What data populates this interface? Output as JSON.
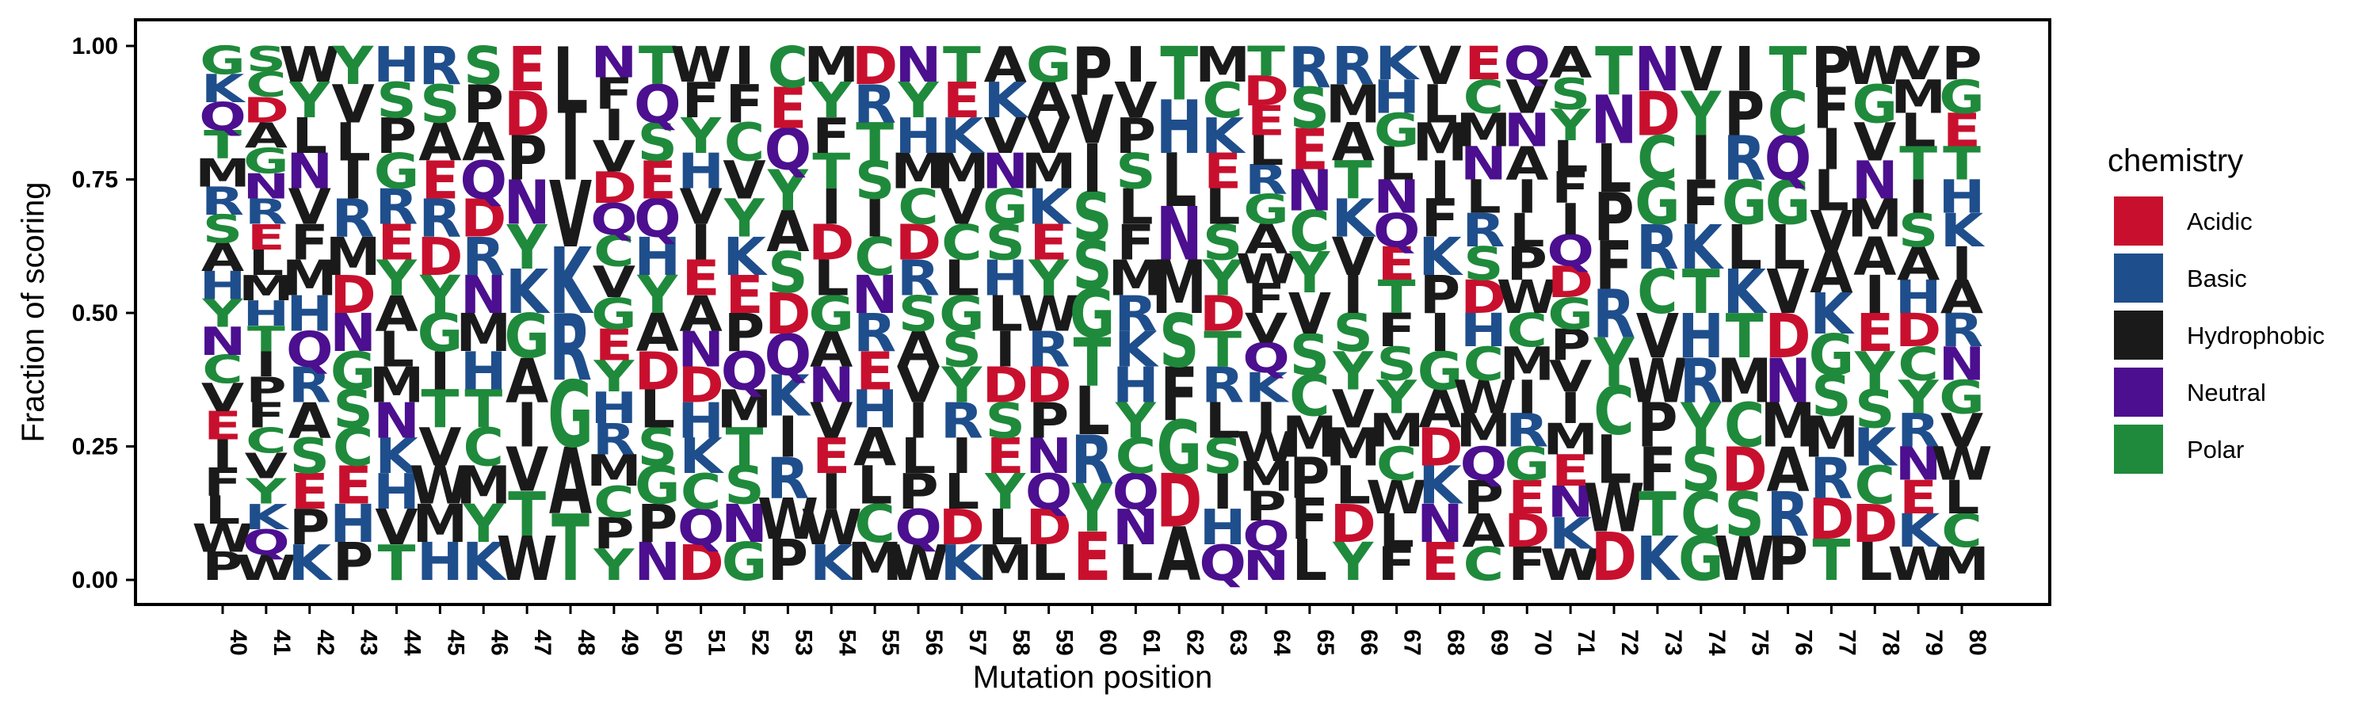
{
  "chart_data": {
    "type": "sequence-logo",
    "ylabel": "Fraction of scoring",
    "xlabel": "Mutation position",
    "ylim": [
      0,
      1.04
    ],
    "yticks": [
      0.0,
      0.25,
      0.5,
      0.75,
      1.0
    ],
    "ytick_labels": [
      "0.00",
      "0.25",
      "0.50",
      "0.75",
      "1.00"
    ],
    "legend": {
      "title": "chemistry",
      "placement": "right",
      "entries": [
        {
          "name": "Acidic",
          "color": "#c8102e"
        },
        {
          "name": "Basic",
          "color": "#1f4e8c"
        },
        {
          "name": "Hydrophobic",
          "color": "#1a1a1a"
        },
        {
          "name": "Neutral",
          "color": "#4b0f8f"
        },
        {
          "name": "Polar",
          "color": "#1f8a3b"
        }
      ]
    },
    "chemistry": {
      "D": "Acidic",
      "E": "Acidic",
      "R": "Basic",
      "H": "Basic",
      "K": "Basic",
      "A": "Hydrophobic",
      "V": "Hydrophobic",
      "I": "Hydrophobic",
      "L": "Hydrophobic",
      "M": "Hydrophobic",
      "F": "Hydrophobic",
      "W": "Hydrophobic",
      "P": "Hydrophobic",
      "N": "Neutral",
      "Q": "Neutral",
      "G": "Polar",
      "S": "Polar",
      "T": "Polar",
      "Y": "Polar",
      "C": "Polar"
    },
    "positions": [
      {
        "x": 40,
        "letters": [
          "P",
          "W",
          "L",
          "F",
          "I",
          "E",
          "V",
          "C",
          "N",
          "Y",
          "H",
          "A",
          "S",
          "R",
          "M",
          "T",
          "Q",
          "K",
          "G"
        ]
      },
      {
        "x": 41,
        "letters": [
          "W",
          "Q",
          "K",
          "Y",
          "V",
          "C",
          "F",
          "P",
          "I",
          "T",
          "H",
          "M",
          "L",
          "E",
          "R",
          "N",
          "G",
          "A",
          "D",
          "C",
          "S"
        ]
      },
      {
        "x": 42,
        "letters": [
          "K",
          "P",
          "E",
          "S",
          "A",
          "R",
          "Q",
          "H",
          "M",
          "F",
          "V",
          "N",
          "L",
          "Y",
          "W"
        ]
      },
      {
        "x": 43,
        "letters": [
          "P",
          "H",
          "E",
          "C",
          "S",
          "G",
          "N",
          "D",
          "M",
          "R",
          "I",
          "L",
          "V",
          "Y"
        ]
      },
      {
        "x": 44,
        "letters": [
          "T",
          "V",
          "H",
          "K",
          "N",
          "M",
          "L",
          "A",
          "Y",
          "E",
          "R",
          "G",
          "P",
          "S",
          "H"
        ]
      },
      {
        "x": 45,
        "letters": [
          "H",
          "M",
          "W",
          "V",
          "T",
          "I",
          "G",
          "Y",
          "D",
          "R",
          "E",
          "A",
          "S",
          "R"
        ]
      },
      {
        "x": 46,
        "letters": [
          "K",
          "Y",
          "M",
          "C",
          "T",
          "H",
          "M",
          "N",
          "R",
          "D",
          "Q",
          "A",
          "P",
          "S"
        ]
      },
      {
        "x": 47,
        "letters": [
          "W",
          "T",
          "V",
          "I",
          "A",
          "G",
          "K",
          "Y",
          "N",
          "P",
          "D",
          "E"
        ]
      },
      {
        "x": 48,
        "letters": [
          "T",
          "A",
          "G",
          "R",
          "K",
          "V",
          "I",
          "L"
        ]
      },
      {
        "x": 49,
        "letters": [
          "Y",
          "P",
          "C",
          "M",
          "R",
          "H",
          "Y",
          "E",
          "G",
          "V",
          "C",
          "Q",
          "D",
          "V",
          "I",
          "F",
          "N"
        ]
      },
      {
        "x": 50,
        "letters": [
          "N",
          "P",
          "G",
          "S",
          "L",
          "D",
          "A",
          "Y",
          "H",
          "Q",
          "E",
          "S",
          "Q",
          "T"
        ]
      },
      {
        "x": 51,
        "letters": [
          "D",
          "Q",
          "C",
          "K",
          "H",
          "D",
          "N",
          "A",
          "E",
          "I",
          "V",
          "H",
          "Y",
          "F",
          "W"
        ]
      },
      {
        "x": 52,
        "letters": [
          "G",
          "N",
          "S",
          "T",
          "M",
          "Q",
          "P",
          "E",
          "K",
          "Y",
          "V",
          "C",
          "F",
          "I"
        ]
      },
      {
        "x": 53,
        "letters": [
          "P",
          "W",
          "R",
          "I",
          "K",
          "Q",
          "D",
          "S",
          "A",
          "Y",
          "Q",
          "E",
          "C"
        ]
      },
      {
        "x": 54,
        "letters": [
          "K",
          "W",
          "I",
          "E",
          "V",
          "N",
          "A",
          "G",
          "L",
          "D",
          "I",
          "T",
          "F",
          "Y",
          "M"
        ]
      },
      {
        "x": 55,
        "letters": [
          "M",
          "C",
          "L",
          "A",
          "H",
          "E",
          "R",
          "N",
          "C",
          "I",
          "S",
          "T",
          "R",
          "D"
        ]
      },
      {
        "x": 56,
        "letters": [
          "W",
          "Q",
          "P",
          "L",
          "I",
          "V",
          "A",
          "S",
          "R",
          "D",
          "C",
          "M",
          "H",
          "Y",
          "N"
        ]
      },
      {
        "x": 57,
        "letters": [
          "K",
          "D",
          "L",
          "I",
          "R",
          "Y",
          "S",
          "G",
          "L",
          "C",
          "V",
          "M",
          "K",
          "E",
          "T"
        ]
      },
      {
        "x": 58,
        "letters": [
          "M",
          "L",
          "Y",
          "E",
          "S",
          "D",
          "I",
          "L",
          "H",
          "S",
          "G",
          "N",
          "V",
          "K",
          "A"
        ]
      },
      {
        "x": 59,
        "letters": [
          "L",
          "D",
          "Q",
          "N",
          "P",
          "D",
          "R",
          "W",
          "Y",
          "E",
          "K",
          "M",
          "V",
          "A",
          "G"
        ]
      },
      {
        "x": 60,
        "letters": [
          "E",
          "Y",
          "R",
          "L",
          "T",
          "G",
          "S",
          "S",
          "I",
          "V",
          "P"
        ]
      },
      {
        "x": 61,
        "letters": [
          "L",
          "N",
          "Q",
          "C",
          "Y",
          "H",
          "K",
          "R",
          "M",
          "F",
          "L",
          "S",
          "P",
          "V",
          "I"
        ]
      },
      {
        "x": 62,
        "letters": [
          "A",
          "D",
          "G",
          "F",
          "S",
          "M",
          "N",
          "L",
          "H",
          "T"
        ]
      },
      {
        "x": 63,
        "letters": [
          "Q",
          "H",
          "I",
          "S",
          "L",
          "R",
          "T",
          "D",
          "Y",
          "S",
          "L",
          "E",
          "K",
          "C",
          "M"
        ]
      },
      {
        "x": 64,
        "letters": [
          "N",
          "Q",
          "P",
          "M",
          "W",
          "I",
          "K",
          "Q",
          "V",
          "F",
          "W",
          "A",
          "G",
          "R",
          "L",
          "E",
          "D",
          "T"
        ]
      },
      {
        "x": 65,
        "letters": [
          "L",
          "F",
          "P",
          "M",
          "C",
          "S",
          "V",
          "Y",
          "C",
          "N",
          "E",
          "S",
          "R"
        ]
      },
      {
        "x": 66,
        "letters": [
          "Y",
          "D",
          "L",
          "M",
          "V",
          "Y",
          "S",
          "I",
          "V",
          "K",
          "T",
          "A",
          "M",
          "R"
        ]
      },
      {
        "x": 67,
        "letters": [
          "F",
          "L",
          "W",
          "C",
          "M",
          "Y",
          "S",
          "F",
          "T",
          "E",
          "Q",
          "N",
          "L",
          "G",
          "H",
          "K"
        ]
      },
      {
        "x": 68,
        "letters": [
          "E",
          "N",
          "K",
          "D",
          "A",
          "G",
          "I",
          "P",
          "K",
          "F",
          "I",
          "M",
          "L",
          "V"
        ]
      },
      {
        "x": 69,
        "letters": [
          "C",
          "A",
          "P",
          "Q",
          "M",
          "W",
          "C",
          "H",
          "D",
          "S",
          "R",
          "L",
          "N",
          "M",
          "C",
          "E"
        ]
      },
      {
        "x": 70,
        "letters": [
          "F",
          "D",
          "E",
          "G",
          "R",
          "I",
          "M",
          "C",
          "W",
          "P",
          "L",
          "I",
          "A",
          "N",
          "V",
          "Q"
        ]
      },
      {
        "x": 71,
        "letters": [
          "W",
          "K",
          "N",
          "E",
          "M",
          "I",
          "V",
          "P",
          "G",
          "D",
          "Q",
          "I",
          "F",
          "L",
          "Y",
          "S",
          "A"
        ]
      },
      {
        "x": 72,
        "letters": [
          "D",
          "W",
          "L",
          "C",
          "Y",
          "R",
          "F",
          "P",
          "L",
          "N",
          "T"
        ]
      },
      {
        "x": 73,
        "letters": [
          "K",
          "T",
          "F",
          "P",
          "W",
          "V",
          "C",
          "R",
          "G",
          "C",
          "D",
          "N"
        ]
      },
      {
        "x": 74,
        "letters": [
          "G",
          "C",
          "S",
          "Y",
          "R",
          "H",
          "T",
          "K",
          "F",
          "I",
          "Y",
          "V"
        ]
      },
      {
        "x": 75,
        "letters": [
          "W",
          "S",
          "D",
          "C",
          "M",
          "T",
          "K",
          "L",
          "G",
          "R",
          "P",
          "I"
        ]
      },
      {
        "x": 76,
        "letters": [
          "P",
          "R",
          "A",
          "M",
          "N",
          "D",
          "V",
          "L",
          "G",
          "Q",
          "C",
          "T"
        ]
      },
      {
        "x": 77,
        "letters": [
          "T",
          "D",
          "R",
          "M",
          "S",
          "G",
          "K",
          "A",
          "V",
          "L",
          "I",
          "F",
          "P"
        ]
      },
      {
        "x": 78,
        "letters": [
          "L",
          "D",
          "C",
          "K",
          "S",
          "Y",
          "E",
          "I",
          "A",
          "M",
          "N",
          "V",
          "G",
          "W"
        ]
      },
      {
        "x": 79,
        "letters": [
          "W",
          "K",
          "E",
          "N",
          "R",
          "Y",
          "C",
          "D",
          "H",
          "A",
          "S",
          "I",
          "T",
          "L",
          "M",
          "V"
        ]
      },
      {
        "x": 80,
        "letters": [
          "M",
          "C",
          "L",
          "W",
          "V",
          "G",
          "N",
          "R",
          "A",
          "I",
          "K",
          "H",
          "T",
          "E",
          "G",
          "P"
        ]
      }
    ]
  }
}
